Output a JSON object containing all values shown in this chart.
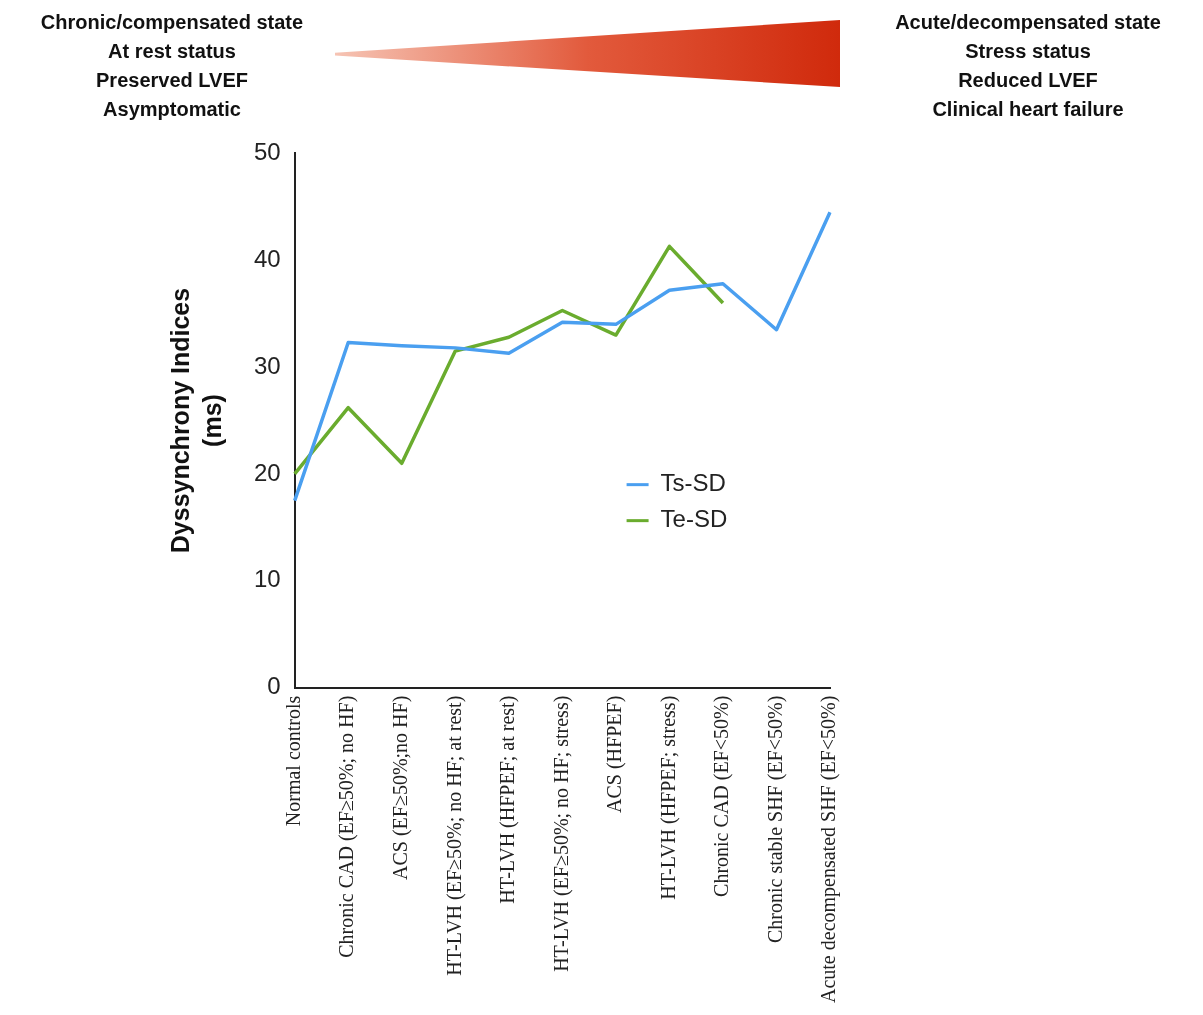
{
  "chart_data": {
    "type": "line",
    "ylabel": "Dyssynchrony Indices (ms)",
    "categories": [
      "Normal controls",
      "Chronic CAD (EF≥50%; no HF)",
      "ACS (EF≥50%;no HF)",
      "HT-LVH (EF≥50%; no HF; at rest)",
      "HT-LVH (HFPEF; at rest)",
      "HT-LVH (EF≥50%; no HF; stress)",
      "ACS (HFPEF)",
      "HT-LVH (HFPEF; stress)",
      "Chronic CAD (EF<50%)",
      "Chronic stable SHF (EF<50%)",
      "Acute decompensated SHF (EF<50%)"
    ],
    "series": [
      {
        "name": "Ts-SD",
        "color": "#4a9ff0",
        "values": [
          17.5,
          32.3,
          32,
          31.8,
          31.3,
          34.2,
          34,
          37.2,
          37.8,
          33.5,
          44.5
        ]
      },
      {
        "name": "Te-SD",
        "color": "#6aac2e",
        "values": [
          20,
          26.2,
          21,
          31.5,
          32.8,
          35.3,
          33,
          41.3,
          36,
          null,
          null
        ]
      }
    ],
    "ylim": [
      0,
      50
    ],
    "yticks": [
      0,
      10,
      20,
      30,
      40,
      50
    ],
    "grid": false,
    "legend": "right",
    "marker": "none",
    "annotations": [
      "Chronic/compensated state",
      "At rest status",
      "Preserved LVEF",
      "Asymptomatic",
      "Acute/decompensated state",
      "Stress status",
      "Reduced LVEF",
      "Clinical heart failure"
    ]
  }
}
